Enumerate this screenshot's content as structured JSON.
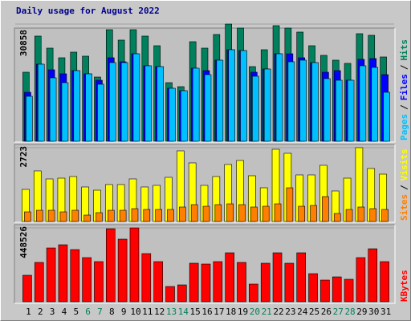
{
  "chart_data": [
    {
      "type": "bar",
      "title": "Daily usage for August 2022",
      "ylim": [
        0,
        30858
      ],
      "yticks": [
        30858
      ],
      "series": [
        {
          "name": "Hits",
          "color": "#00805c",
          "values": [
            18180,
            27693,
            24522,
            21985,
            23465,
            22408,
            16912,
            29384,
            26636,
            29384,
            27693,
            25156,
            15432,
            14375,
            26213,
            24522,
            28116,
            30858,
            29807,
            19660,
            24100,
            30442,
            29807,
            28750,
            25156,
            22620,
            21351,
            20506,
            28327,
            27905,
            22197
          ]
        },
        {
          "name": "Files",
          "color": "#0000ff",
          "values": [
            12895,
            20294,
            18815,
            17757,
            18603,
            17757,
            16066,
            21985,
            20928,
            23042,
            19871,
            19660,
            13952,
            13318,
            19237,
            18603,
            21351,
            24100,
            23888,
            18180,
            19026,
            23042,
            23042,
            21985,
            20717,
            18180,
            18603,
            16066,
            21563,
            21774,
            17546
          ]
        },
        {
          "name": "Pages",
          "color": "#00c0ff",
          "values": [
            11838,
            20294,
            16700,
            15432,
            18603,
            17757,
            15009,
            20717,
            20717,
            23042,
            19871,
            19660,
            13952,
            13318,
            19237,
            17546,
            21351,
            24100,
            23888,
            17123,
            19026,
            23042,
            20928,
            21351,
            20717,
            16489,
            16066,
            16066,
            19871,
            19449,
            12895
          ]
        }
      ]
    },
    {
      "type": "bar",
      "ylim": [
        0,
        2723
      ],
      "yticks": [
        2723
      ],
      "series": [
        {
          "name": "Visits",
          "color": "#ffff00",
          "values": [
            1184,
            1865,
            1569,
            1598,
            1658,
            1273,
            1154,
            1362,
            1362,
            1569,
            1273,
            1332,
            1628,
            2605,
            2161,
            1332,
            1658,
            2102,
            2250,
            1687,
            1243,
            2664,
            2516,
            1717,
            1717,
            2072,
            1125,
            1598,
            2723,
            1954,
            1746
          ]
        },
        {
          "name": "Sites",
          "color": "#ff8000",
          "values": [
            355,
            414,
            414,
            355,
            414,
            237,
            326,
            414,
            414,
            474,
            444,
            444,
            444,
            533,
            622,
            562,
            622,
            651,
            622,
            533,
            562,
            651,
            1243,
            562,
            592,
            918,
            296,
            444,
            533,
            474,
            444
          ]
        }
      ]
    },
    {
      "type": "bar",
      "ylim": [
        0,
        448526
      ],
      "yticks": [
        448526
      ],
      "series": [
        {
          "name": "KBytes",
          "color": "#ff0000",
          "values": [
            160875,
            238875,
            326625,
            346125,
            316875,
            268125,
            243750,
            443625,
            380250,
            448526,
            292500,
            243750,
            92625,
            102375,
            234000,
            229125,
            243750,
            297375,
            238875,
            107250,
            234000,
            297375,
            234000,
            297375,
            170625,
            131625,
            151125,
            136500,
            268125,
            321750,
            243750
          ]
        }
      ],
      "categories": [
        "1",
        "2",
        "3",
        "4",
        "5",
        "6",
        "7",
        "8",
        "9",
        "10",
        "11",
        "12",
        "13",
        "14",
        "15",
        "16",
        "17",
        "18",
        "19",
        "20",
        "21",
        "22",
        "23",
        "24",
        "25",
        "26",
        "27",
        "28",
        "29",
        "30",
        "31"
      ],
      "category_colors": [
        "#000000",
        "#000000",
        "#000000",
        "#000000",
        "#000000",
        "#00805c",
        "#00805c",
        "#000000",
        "#000000",
        "#000000",
        "#000000",
        "#000000",
        "#00805c",
        "#00805c",
        "#000000",
        "#000000",
        "#000000",
        "#000000",
        "#000000",
        "#00805c",
        "#00805c",
        "#000000",
        "#000000",
        "#000000",
        "#000000",
        "#000000",
        "#00805c",
        "#00805c",
        "#000000",
        "#000000",
        "#000000"
      ]
    },
    {
      "legend_separator": "/",
      "title_color": "#00008b"
    }
  ]
}
